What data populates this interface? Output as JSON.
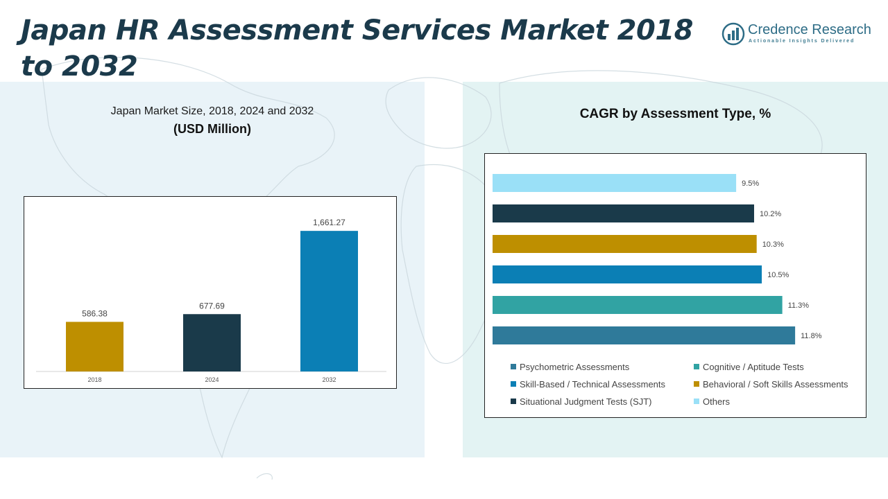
{
  "header": {
    "title": "Japan HR Assessment Services Market 2018 to 2032"
  },
  "logo": {
    "name": "Credence Research",
    "tagline": "Actionable Insights Delivered"
  },
  "left_panel": {
    "subtitle": "Japan Market Size, 2018, 2024 and 2032",
    "unit": "(USD Million)"
  },
  "right_panel": {
    "title": "CAGR by Assessment Type, %"
  },
  "colors": {
    "gold": "#be8f00",
    "navy": "#1a3a4a",
    "blue": "#0b7fb5",
    "teal": "#31a3a3",
    "steel": "#2f7a9a",
    "light": "#9ae0f7",
    "title": "#1b3a4b"
  },
  "chart_data": [
    {
      "type": "bar",
      "categories": [
        "2018",
        "2024",
        "2032"
      ],
      "values": [
        586.38,
        677.69,
        1661.27
      ],
      "value_labels": [
        "586.38",
        "677.69",
        "1,661.27"
      ],
      "colors": [
        "#be8f00",
        "#1a3a4a",
        "#0b7fb5"
      ],
      "title": "Japan Market Size, 2018, 2024 and 2032",
      "ylabel": "(USD Million)",
      "ylim": [
        0,
        1900
      ],
      "grid": false,
      "legend": "none"
    },
    {
      "type": "bar",
      "orientation": "horizontal",
      "title": "CAGR by Assessment Type, %",
      "series": [
        {
          "name": "Psychometric Assessments",
          "value": 11.8,
          "label": "11.8%",
          "color": "#2f7a9a"
        },
        {
          "name": "Cognitive / Aptitude Tests",
          "value": 11.3,
          "label": "11.3%",
          "color": "#31a3a3"
        },
        {
          "name": "Skill-Based / Technical Assessments",
          "value": 10.5,
          "label": "10.5%",
          "color": "#0b7fb5"
        },
        {
          "name": "Behavioral / Soft Skills Assessments",
          "value": 10.3,
          "label": "10.3%",
          "color": "#be8f00"
        },
        {
          "name": "Situational Judgment Tests (SJT)",
          "value": 10.2,
          "label": "10.2%",
          "color": "#1a3a4a"
        },
        {
          "name": "Others",
          "value": 9.5,
          "label": "9.5%",
          "color": "#9ae0f7"
        }
      ],
      "xlim": [
        0,
        12.5
      ],
      "grid": false,
      "legend": "bottom"
    }
  ]
}
